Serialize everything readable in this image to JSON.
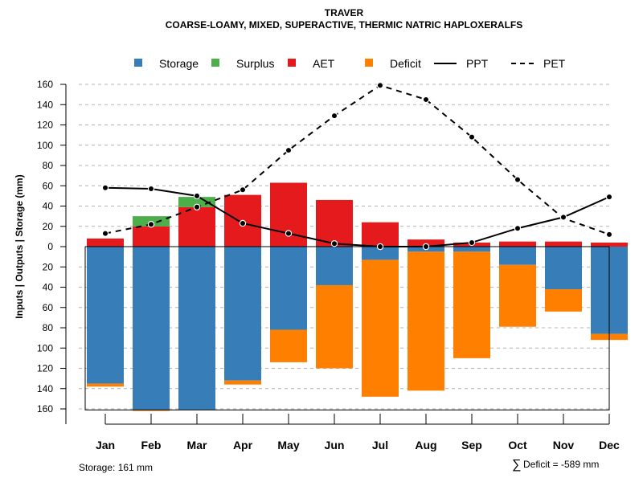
{
  "chart_data": {
    "type": "bar",
    "title": "TRAVER",
    "subtitle": "COARSE-LOAMY, MIXED, SUPERACTIVE, THERMIC NATRIC HAPLOXERALFS",
    "ylabel": "Inputs | Outputs | Storage    (mm)",
    "xlabel": "",
    "ylim": [
      -160,
      160
    ],
    "yticks": [
      160,
      140,
      120,
      100,
      80,
      60,
      40,
      20,
      0,
      -20,
      -40,
      -60,
      -80,
      -100,
      -120,
      -140,
      -160
    ],
    "ytick_labels": [
      "160",
      "140",
      "120",
      "100",
      "80",
      "60",
      "40",
      "20",
      "0",
      "20",
      "40",
      "60",
      "80",
      "100",
      "120",
      "140",
      "160"
    ],
    "categories": [
      "Jan",
      "Feb",
      "Mar",
      "Apr",
      "May",
      "Jun",
      "Jul",
      "Aug",
      "Sep",
      "Oct",
      "Nov",
      "Dec"
    ],
    "series": [
      {
        "name": "Storage",
        "color": "#377eb8",
        "values": [
          135,
          161,
          161,
          132,
          82,
          38,
          13,
          5,
          5,
          18,
          42,
          86
        ]
      },
      {
        "name": "Surplus",
        "color": "#4daf4a",
        "values": [
          0,
          10,
          10,
          0,
          0,
          0,
          0,
          0,
          0,
          0,
          0,
          0
        ]
      },
      {
        "name": "AET",
        "color": "#e41a1c",
        "values": [
          8,
          20,
          39,
          51,
          63,
          46,
          24,
          7,
          4,
          5,
          5,
          4
        ]
      },
      {
        "name": "Deficit",
        "color": "#ff7f00",
        "values": [
          3,
          1,
          0,
          4,
          32,
          82,
          135,
          137,
          105,
          61,
          22,
          6
        ]
      },
      {
        "name": "PPT",
        "color": "#000000",
        "style": "solid",
        "values": [
          58,
          57,
          50,
          23,
          13,
          3,
          0,
          0,
          4,
          18,
          29,
          49
        ]
      },
      {
        "name": "PET",
        "color": "#000000",
        "style": "dashed",
        "values": [
          13,
          22,
          39,
          56,
          95,
          129,
          159,
          145,
          108,
          66,
          28,
          12
        ]
      }
    ],
    "legend_position": "top",
    "grid": true,
    "annotations": {
      "storage_note": "Storage: 161 mm",
      "deficit_symbol": "∑",
      "deficit_note": "Deficit = -589 mm"
    }
  }
}
